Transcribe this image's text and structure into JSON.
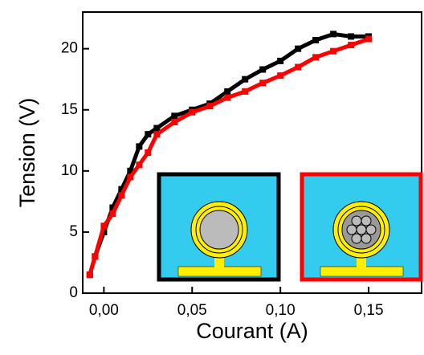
{
  "chart_data": {
    "type": "scatter",
    "x_label": "Courant (A)",
    "y_label": "Tension (V)",
    "xlim": [
      -0.012,
      0.18
    ],
    "ylim": [
      0,
      23
    ],
    "xticks": [
      {
        "value": 0,
        "label": "0,00"
      },
      {
        "value": 0.05,
        "label": "0,05"
      },
      {
        "value": 0.1,
        "label": "0,10"
      },
      {
        "value": 0.15,
        "label": "0,15"
      }
    ],
    "yticks": [
      0,
      5,
      10,
      15,
      20
    ],
    "series": [
      {
        "color": "#000000",
        "x": [
          -0.008,
          -0.005,
          0,
          0.005,
          0.01,
          0.015,
          0.02,
          0.025,
          0.03,
          0.04,
          0.05,
          0.06,
          0.07,
          0.08,
          0.09,
          0.1,
          0.11,
          0.12,
          0.13,
          0.14,
          0.15
        ],
        "values": [
          1.5,
          3,
          5,
          7,
          8.5,
          10,
          12,
          13,
          13.5,
          14.5,
          15,
          15.5,
          16.5,
          17.5,
          18.3,
          19,
          20,
          20.7,
          21.2,
          21,
          21
        ]
      },
      {
        "color": "#ff0000",
        "x": [
          -0.008,
          -0.005,
          0,
          0.005,
          0.01,
          0.015,
          0.02,
          0.025,
          0.03,
          0.04,
          0.05,
          0.06,
          0.07,
          0.08,
          0.09,
          0.1,
          0.11,
          0.12,
          0.13,
          0.14,
          0.15
        ],
        "values": [
          1.5,
          3,
          5.5,
          6.5,
          8,
          9.5,
          10.5,
          11.5,
          13,
          14,
          14.8,
          15.3,
          16,
          16.5,
          17.2,
          17.8,
          18.5,
          19.3,
          19.8,
          20.3,
          20.8
        ]
      }
    ]
  }
}
